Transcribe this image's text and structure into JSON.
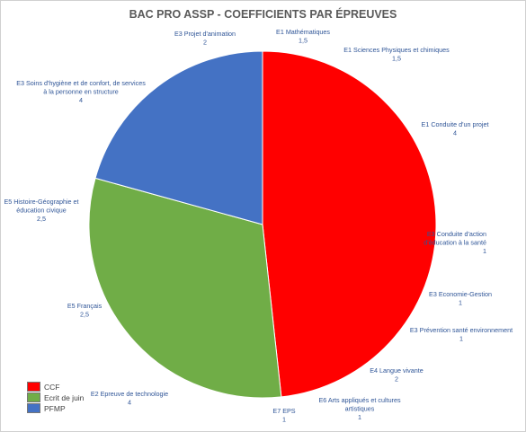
{
  "chart_data": {
    "type": "pie",
    "title": "BAC PRO ASSP - COEFFICIENTS PAR ÉPREUVES",
    "series": [
      {
        "name": "CCF",
        "color": "#ff0000"
      },
      {
        "name": "Ecrit de juin",
        "color": "#70ad47"
      },
      {
        "name": "PFMP",
        "color": "#4472c4"
      }
    ],
    "slices": [
      {
        "label": "E1 Mathématiques",
        "value_label": "1,5",
        "value": 1.5,
        "group": "CCF"
      },
      {
        "label": "E1 Sciences Physiques et chimiques",
        "value_label": "1,5",
        "value": 1.5,
        "group": "CCF"
      },
      {
        "label": "E1 Conduite d'un projet",
        "value_label": "4",
        "value": 4,
        "group": "CCF"
      },
      {
        "label": "E3 Conduite d'action d'éducation à la santé",
        "value_label": "1",
        "value": 1,
        "group": "CCF"
      },
      {
        "label": "E3 Economie-Gestion",
        "value_label": "1",
        "value": 1,
        "group": "CCF"
      },
      {
        "label": "E3 Prévention santé environnement",
        "value_label": "1",
        "value": 1,
        "group": "CCF"
      },
      {
        "label": "E4 Langue vivante",
        "value_label": "2",
        "value": 2,
        "group": "CCF"
      },
      {
        "label": "E6 Arts appliqués et cultures artistiques",
        "value_label": "1",
        "value": 1,
        "group": "CCF"
      },
      {
        "label": "E7 EPS",
        "value_label": "1",
        "value": 1,
        "group": "CCF"
      },
      {
        "label": "E2 Epreuve de technologie",
        "value_label": "4",
        "value": 4,
        "group": "Ecrit de juin"
      },
      {
        "label": "E5 Français",
        "value_label": "2,5",
        "value": 2.5,
        "group": "Ecrit de juin"
      },
      {
        "label": "E5 Histoire-Géographie et éducation civique",
        "value_label": "2,5",
        "value": 2.5,
        "group": "Ecrit de juin"
      },
      {
        "label": "E3 Soins d'hygiène et de confort, de services à la personne en structure",
        "value_label": "4",
        "value": 4,
        "group": "PFMP"
      },
      {
        "label": "E3 Projet d'animation",
        "value_label": "2",
        "value": 2,
        "group": "PFMP"
      }
    ],
    "legend_position": "bottom-left"
  }
}
